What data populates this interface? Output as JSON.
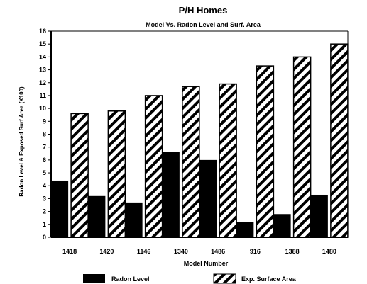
{
  "chart_data": {
    "type": "bar",
    "title": "P/H Homes",
    "subtitle": "Model Vs. Radon Level and Surf. Area",
    "xlabel": "Model Number",
    "ylabel": "Radon Level & Exposed Surf Area (X100)",
    "categories": [
      "1418",
      "1420",
      "1146",
      "1340",
      "1486",
      "916",
      "1388",
      "1480"
    ],
    "ylim": [
      0,
      16
    ],
    "yticks": [
      "0",
      "1",
      "2",
      "3",
      "4",
      "5",
      "6",
      "7",
      "8",
      "9",
      "10",
      "11",
      "12",
      "13",
      "14",
      "15",
      "16"
    ],
    "grid": false,
    "legend_position": "bottom",
    "series": [
      {
        "name": "Radon Level",
        "values": [
          4.4,
          3.2,
          2.7,
          6.6,
          6.0,
          1.2,
          1.8,
          3.3
        ],
        "color": "#000000",
        "pattern": "solid"
      },
      {
        "name": "Exp. Surface Area",
        "values": [
          9.6,
          9.8,
          11.0,
          11.7,
          11.9,
          13.3,
          14.0,
          15.0
        ],
        "color": "#000000",
        "pattern": "diagonal-hatch"
      }
    ]
  }
}
